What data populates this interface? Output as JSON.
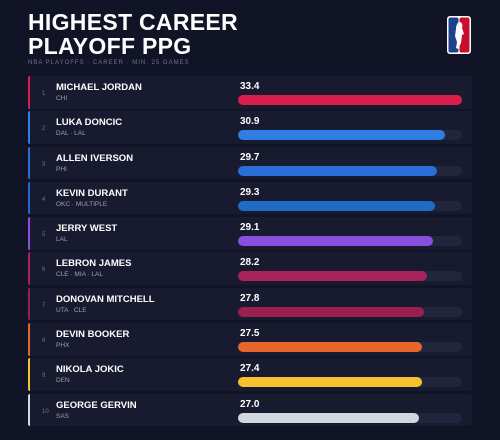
{
  "chart_data": {
    "type": "bar",
    "title": "HIGHEST CAREER PLAYOFF PPG",
    "subtitle": "NBA PLAYOFFS · CAREER · MIN. 25 GAMES",
    "ranks": [
      1,
      2,
      3,
      4,
      5,
      6,
      7,
      8,
      9,
      10
    ],
    "categories": [
      "MICHAEL JORDAN",
      "LUKA DONCIC",
      "ALLEN IVERSON",
      "KEVIN DURANT",
      "JERRY WEST",
      "LEBRON JAMES",
      "DONOVAN MITCHELL",
      "DEVIN BOOKER",
      "NIKOLA JOKIC",
      "GEORGE GERVIN"
    ],
    "teams": [
      "CHI",
      "DAL · LAL",
      "PHI",
      "OKC · MULTIPLE",
      "LAL",
      "CLE · MIA · LAL",
      "UTA · CLE",
      "PHX",
      "DEN",
      "SAS"
    ],
    "values": [
      33.4,
      30.9,
      29.7,
      29.3,
      29.1,
      28.2,
      27.8,
      27.5,
      27.4,
      27
    ],
    "value_labels": [
      "33.4",
      "30.9",
      "29.7",
      "29.3",
      "29.1",
      "28.2",
      "27.8",
      "27.5",
      "27.4",
      "27.0"
    ],
    "colors": [
      "#d81f4c",
      "#2e7ee3",
      "#2a6fd8",
      "#1f6cc6",
      "#8b4fe0",
      "#a8225c",
      "#9b1f4e",
      "#e8662b",
      "#f4c22f",
      "#d2d6de"
    ],
    "xlim": [
      0,
      33.4
    ]
  }
}
